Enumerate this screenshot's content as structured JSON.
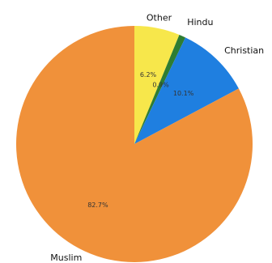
{
  "chart_data": {
    "type": "pie",
    "title": "",
    "start_angle_deg": 90,
    "direction": "clockwise",
    "slices": [
      {
        "label": "Other",
        "value": 6.2,
        "pct_label": "6.2%",
        "color": "#f7e74b"
      },
      {
        "label": "Hindu",
        "value": 0.9,
        "pct_label": "0.9%",
        "color": "#2e7d32"
      },
      {
        "label": "Christian",
        "value": 10.1,
        "pct_label": "10.1%",
        "color": "#1f7fe0"
      },
      {
        "label": "Muslim",
        "value": 82.7,
        "pct_label": "82.7%",
        "color": "#f0913a"
      }
    ]
  }
}
